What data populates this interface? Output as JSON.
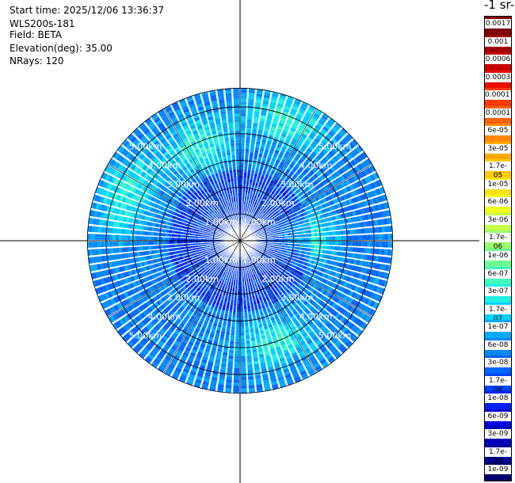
{
  "header": {
    "start_time": "Start time: 2025/12/06 13:36:37",
    "instrument": "WLS200s-181",
    "field": "Field: BETA",
    "elevation": "Elevation(deg): 35.00",
    "nrays": "NRays: 120"
  },
  "colorbar": {
    "title": "-1 sr-",
    "labels": [
      "0.0017",
      "0.001",
      "0.0006",
      "0.0003",
      "0.00017",
      "0.0001",
      "6e-05",
      "3e-05",
      "1.7e-05",
      "1e-05",
      "6e-06",
      "3e-06",
      "1.7e-06",
      "1e-06",
      "6e-07",
      "3e-07",
      "1.7e-07",
      "1e-07",
      "6e-08",
      "3e-08",
      "1.7e-08",
      "1e-08",
      "6e-09",
      "3e-09",
      "1.7e-09",
      "1e-09"
    ],
    "colors": [
      "#7f0000",
      "#a00000",
      "#c80000",
      "#e81000",
      "#ff3a00",
      "#ff6000",
      "#ff8800",
      "#ffaa00",
      "#ffc800",
      "#ffe600",
      "#f0ff20",
      "#c4ff44",
      "#96ff6a",
      "#6cff92",
      "#40ffbe",
      "#20f0e6",
      "#00d2ff",
      "#00aaff",
      "#0088ff",
      "#0066ff",
      "#0044ff",
      "#0022ee",
      "#0000dd",
      "#0000b8",
      "#000093",
      "#00006e"
    ]
  },
  "chart_data": {
    "type": "heatmap",
    "projection": "polar PPI",
    "field": "BETA",
    "elevation_deg": 35.0,
    "nrays": 120,
    "range_rings_km": [
      1,
      2,
      3,
      4,
      5
    ],
    "ring_labels": [
      "1.00km",
      "2.00km",
      "3.00km",
      "4.00km",
      "5.00km"
    ],
    "max_range_km": 5.7,
    "azimuth_step_deg": 3,
    "dominant_value_range": [
      3e-08,
      1e-07
    ],
    "enhanced_regions": [
      {
        "azimuth_deg": 20,
        "range_km": 4.8,
        "value": 3e-07
      },
      {
        "azimuth_deg": 335,
        "range_km": 3.8,
        "value": 3e-07
      },
      {
        "azimuth_deg": 160,
        "range_km": 4.0,
        "value": 6e-07
      },
      {
        "azimuth_deg": 290,
        "range_km": 4.5,
        "value": 3e-07
      },
      {
        "azimuth_deg": 85,
        "range_km": 2.5,
        "value": 6e-07
      }
    ],
    "grid": true
  }
}
